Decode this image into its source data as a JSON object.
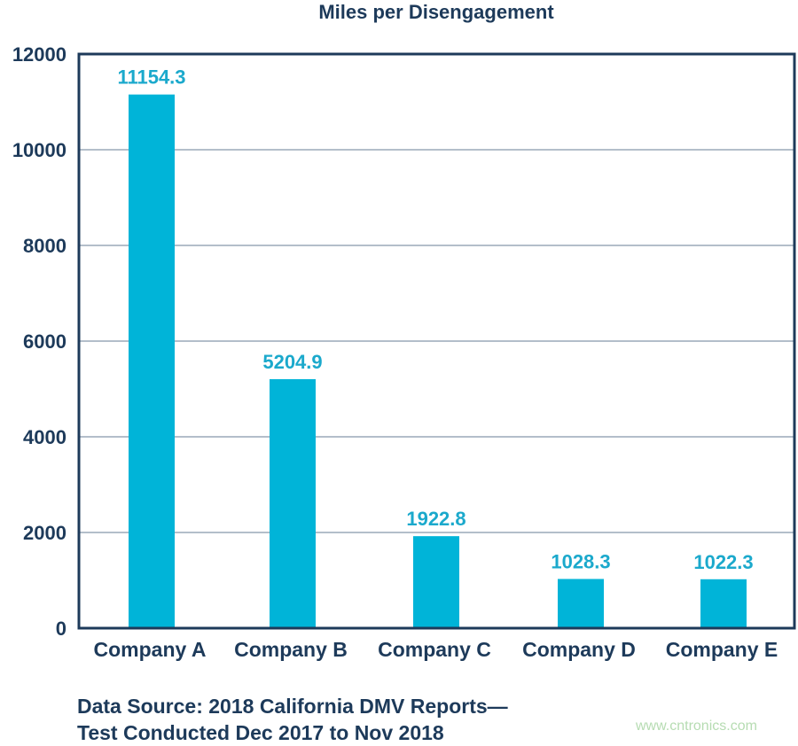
{
  "chart_data": {
    "type": "bar",
    "title": "Miles per Disengagement",
    "categories": [
      "Company A",
      "Company B",
      "Company C",
      "Company D",
      "Company E"
    ],
    "values": [
      11154.3,
      5204.9,
      1922.8,
      1028.3,
      1022.3
    ],
    "data_labels": [
      "11154.3",
      "5204.9",
      "1922.8",
      "1028.3",
      "1022.3"
    ],
    "xlabel": "",
    "ylabel": "",
    "ylim": [
      0,
      12000
    ],
    "yticks": [
      "0",
      "2000",
      "4000",
      "6000",
      "8000",
      "10000",
      "12000"
    ],
    "grid": true,
    "legend": "none",
    "colors": {
      "bar": "#00b4d8",
      "data_label": "#1ba9cc",
      "axis_text": "#1d3a5a",
      "frame": "#1d3a5a",
      "grid": "#9aa8b8"
    }
  },
  "source_note": [
    "Data Source: 2018 California DMV Reports—",
    "Test Conducted Dec 2017 to Nov 2018"
  ],
  "watermark": "www.cntronics.com"
}
